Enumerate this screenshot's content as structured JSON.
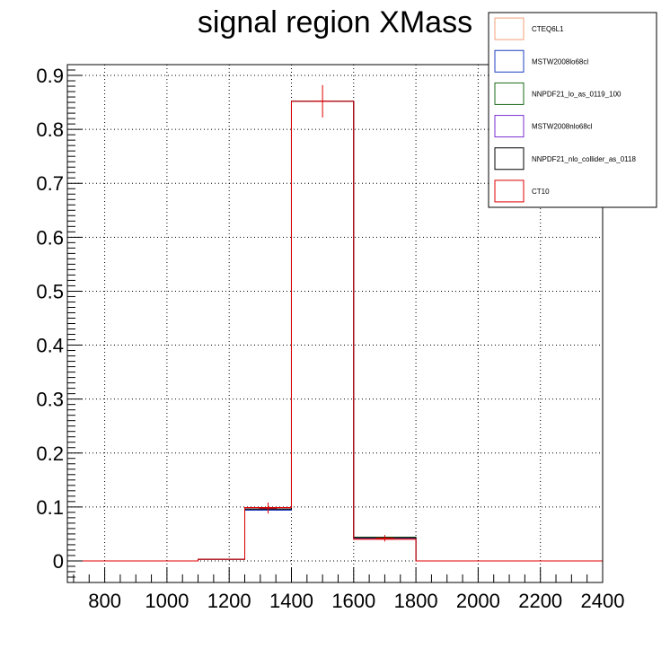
{
  "chart_data": {
    "type": "histogram",
    "title": "signal region XMass",
    "xlabel": "",
    "ylabel": "",
    "xlim": [
      680,
      2400
    ],
    "ylim": [
      -0.04,
      0.92
    ],
    "x_ticks": [
      800,
      1000,
      1200,
      1400,
      1600,
      1800,
      2000,
      2200,
      2400
    ],
    "x_tick_labels": [
      "800",
      "1000",
      "1200",
      "1400",
      "1600",
      "1800",
      "2000",
      "2200",
      "2400"
    ],
    "y_ticks": [
      0,
      0.1,
      0.2,
      0.3,
      0.4,
      0.5,
      0.6,
      0.7,
      0.8,
      0.9
    ],
    "y_tick_labels": [
      "0",
      "0.1",
      "0.2",
      "0.3",
      "0.4",
      "0.5",
      "0.6",
      "0.7",
      "0.8",
      "0.9"
    ],
    "grid": true,
    "legend_position": "top-right",
    "bin_edges": [
      680,
      1100,
      1250,
      1400,
      1600,
      1800,
      2400
    ],
    "error_bars": [
      {
        "x": 1325,
        "y": 0.098,
        "err": 0.01
      },
      {
        "x": 1500,
        "y": 0.852,
        "err": 0.03
      },
      {
        "x": 1700,
        "y": 0.042,
        "err": 0.006
      }
    ],
    "series": [
      {
        "name": "CTEQ6L1",
        "color": "#f4a07a",
        "values": [
          0,
          0.003,
          0.097,
          0.852,
          0.041,
          0
        ]
      },
      {
        "name": "MSTW2008lo68cl",
        "color": "#1f3fbf",
        "values": [
          0,
          0.003,
          0.094,
          0.852,
          0.043,
          0
        ]
      },
      {
        "name": "NNPDF21_lo_as_0119_100",
        "color": "#1a6b1a",
        "values": [
          0,
          0.003,
          0.096,
          0.852,
          0.044,
          0
        ]
      },
      {
        "name": "MSTW2008nlo68cl",
        "color": "#7a2fd0",
        "values": [
          0,
          0.003,
          0.096,
          0.852,
          0.042,
          0
        ]
      },
      {
        "name": "NNPDF21_nlo_collider_as_0118",
        "color": "#000000",
        "values": [
          0,
          0.003,
          0.096,
          0.852,
          0.043,
          0
        ]
      },
      {
        "name": "CT10",
        "color": "#e00000",
        "values": [
          0,
          0.003,
          0.099,
          0.852,
          0.04,
          0
        ]
      }
    ]
  }
}
